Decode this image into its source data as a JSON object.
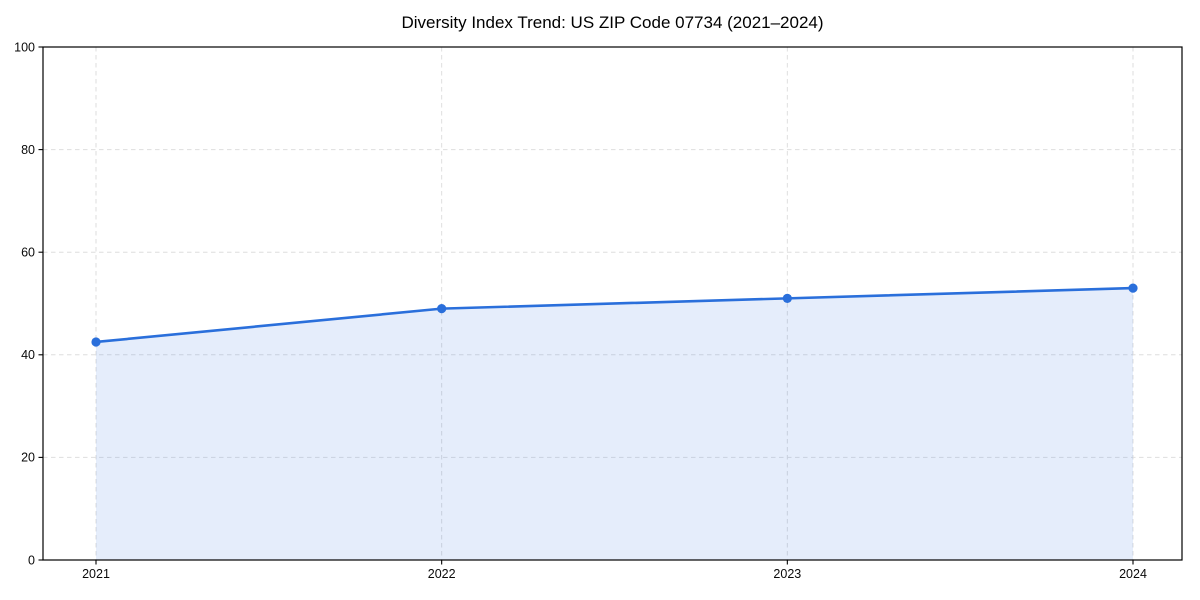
{
  "chart_data": {
    "type": "line",
    "title": "Diversity Index Trend: US ZIP Code 07734 (2021–2024)",
    "categories": [
      "2021",
      "2022",
      "2023",
      "2024"
    ],
    "values": [
      42.5,
      49,
      51,
      53
    ],
    "xlabel": "",
    "ylabel": "",
    "ylim": [
      0,
      100
    ],
    "yticks": [
      0,
      20,
      40,
      60,
      80,
      100
    ],
    "grid": "dashed-both-axes",
    "legend_position": "none",
    "area_fill": true,
    "marker": "circle",
    "colors": {
      "line": "#2a6fdb",
      "marker": "#2a6fdb",
      "area_fill": "rgba(42,111,219,0.12)",
      "gridline": "#dedede",
      "spine": "#000000",
      "tick_label": "#0a0a0a",
      "background": "#ffffff"
    }
  }
}
